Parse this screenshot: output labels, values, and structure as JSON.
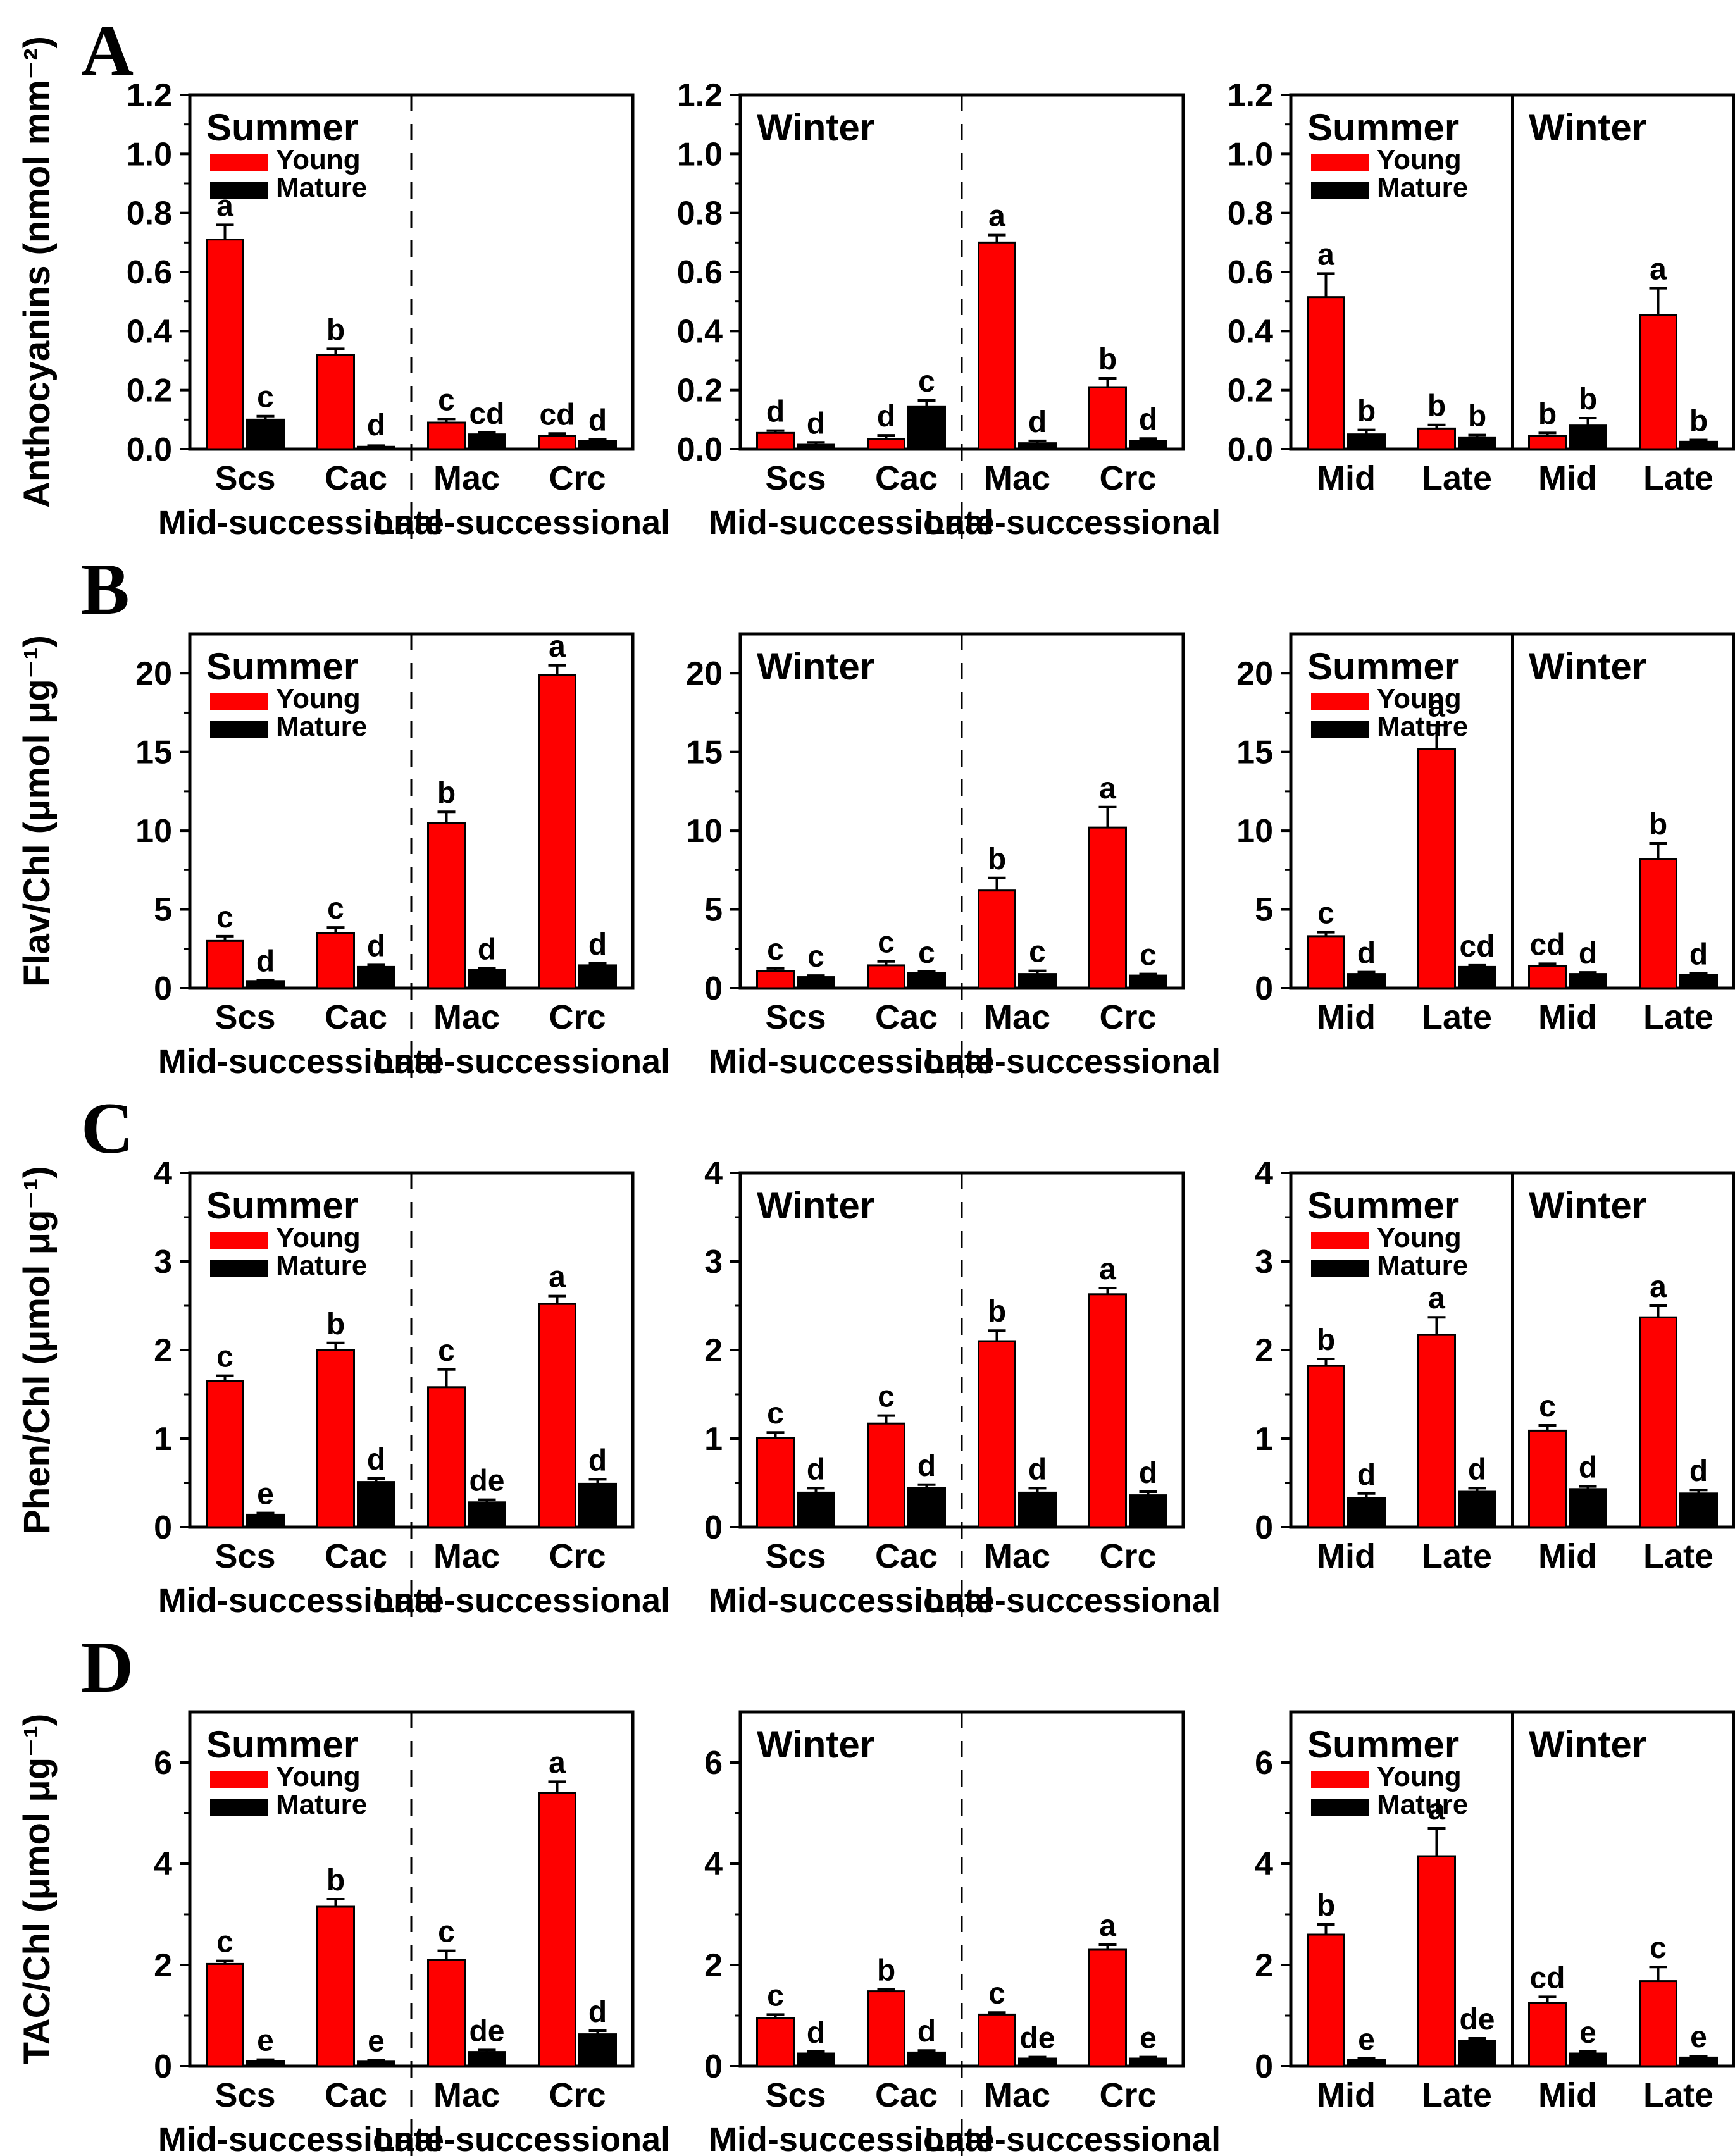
{
  "legend": {
    "young_label": "Young",
    "mature_label": "Mature",
    "young_color": "#fe0000",
    "mature_color": "#000000"
  },
  "chart_data": {
    "type": "bar",
    "series_names": [
      "Young",
      "Mature"
    ],
    "grid": false,
    "legend_position": "top-left-inside",
    "rows": [
      {
        "row_label": "A",
        "ylabel": "Anthocyanins (nmol mm⁻²)",
        "ylim": [
          0,
          1.2
        ],
        "yticks": [
          0,
          0.2,
          0.4,
          0.6,
          0.8,
          1.0,
          1.2
        ],
        "ytick_labels": [
          "0.0",
          "0.2",
          "0.4",
          "0.6",
          "0.8",
          "1.0",
          "1.2"
        ],
        "yminor": [
          0.1,
          0.3,
          0.5,
          0.7,
          0.9,
          1.1
        ],
        "panels": [
          {
            "headers": [
              "Summer"
            ],
            "legend": true,
            "divider": "dashed",
            "categories": [
              "Scs",
              "Cac",
              "Mac",
              "Crc"
            ],
            "group_labels": [
              "Mid-successional",
              "Late-successional"
            ],
            "young": {
              "values": [
                0.71,
                0.32,
                0.09,
                0.045
              ],
              "errors": [
                0.05,
                0.02,
                0.012,
                0.008
              ],
              "letters": [
                "a",
                "b",
                "c",
                "cd"
              ]
            },
            "mature": {
              "values": [
                0.1,
                0.008,
                0.05,
                0.028
              ],
              "errors": [
                0.012,
                0.004,
                0.006,
                0.005
              ],
              "letters": [
                "c",
                "d",
                "cd",
                "d"
              ]
            }
          },
          {
            "headers": [
              "Winter"
            ],
            "legend": false,
            "divider": "dashed",
            "categories": [
              "Scs",
              "Cac",
              "Mac",
              "Crc"
            ],
            "group_labels": [
              "Mid-successional",
              "Late-successional"
            ],
            "young": {
              "values": [
                0.055,
                0.035,
                0.7,
                0.21
              ],
              "errors": [
                0.008,
                0.012,
                0.025,
                0.03
              ],
              "letters": [
                "d",
                "d",
                "a",
                "b"
              ]
            },
            "mature": {
              "values": [
                0.015,
                0.145,
                0.02,
                0.028
              ],
              "errors": [
                0.008,
                0.02,
                0.008,
                0.008
              ],
              "letters": [
                "d",
                "c",
                "d",
                "d"
              ]
            }
          },
          {
            "headers": [
              "Summer",
              "Winter"
            ],
            "legend": true,
            "divider": "solid",
            "categories": [
              "Mid",
              "Late",
              "Mid",
              "Late"
            ],
            "group_labels": null,
            "young": {
              "values": [
                0.515,
                0.07,
                0.045,
                0.455
              ],
              "errors": [
                0.08,
                0.012,
                0.01,
                0.09
              ],
              "letters": [
                "a",
                "b",
                "b",
                "a"
              ]
            },
            "mature": {
              "values": [
                0.05,
                0.04,
                0.08,
                0.025
              ],
              "errors": [
                0.015,
                0.008,
                0.025,
                0.006
              ],
              "letters": [
                "b",
                "b",
                "b",
                "b"
              ]
            }
          }
        ]
      },
      {
        "row_label": "B",
        "ylabel": "Flav/Chl (μmol μg⁻¹)",
        "ylim": [
          0,
          22.5
        ],
        "yticks": [
          0,
          5,
          10,
          15,
          20
        ],
        "ytick_labels": [
          "0",
          "5",
          "10",
          "15",
          "20"
        ],
        "yminor": [
          2.5,
          7.5,
          12.5,
          17.5
        ],
        "panels": [
          {
            "headers": [
              "Summer"
            ],
            "legend": true,
            "divider": "dashed",
            "categories": [
              "Scs",
              "Cac",
              "Mac",
              "Crc"
            ],
            "group_labels": [
              "Mid-successional",
              "Late-successional"
            ],
            "young": {
              "values": [
                3.0,
                3.5,
                10.5,
                19.9
              ],
              "errors": [
                0.3,
                0.35,
                0.7,
                0.6
              ],
              "letters": [
                "c",
                "c",
                "b",
                "a"
              ]
            },
            "mature": {
              "values": [
                0.45,
                1.35,
                1.15,
                1.45
              ],
              "errors": [
                0.05,
                0.12,
                0.12,
                0.12
              ],
              "letters": [
                "d",
                "d",
                "d",
                "d"
              ]
            }
          },
          {
            "headers": [
              "Winter"
            ],
            "legend": false,
            "divider": "dashed",
            "categories": [
              "Scs",
              "Cac",
              "Mac",
              "Crc"
            ],
            "group_labels": [
              "Mid-successional",
              "Late-successional"
            ],
            "young": {
              "values": [
                1.1,
                1.45,
                6.2,
                10.2
              ],
              "errors": [
                0.15,
                0.25,
                0.8,
                1.3
              ],
              "letters": [
                "c",
                "c",
                "b",
                "a"
              ]
            },
            "mature": {
              "values": [
                0.7,
                0.95,
                0.9,
                0.8
              ],
              "errors": [
                0.1,
                0.1,
                0.2,
                0.1
              ],
              "letters": [
                "c",
                "c",
                "c",
                "c"
              ]
            }
          },
          {
            "headers": [
              "Summer",
              "Winter"
            ],
            "legend": true,
            "divider": "solid",
            "categories": [
              "Mid",
              "Late",
              "Mid",
              "Late"
            ],
            "group_labels": null,
            "young": {
              "values": [
                3.3,
                15.2,
                1.4,
                8.2
              ],
              "errors": [
                0.25,
                1.5,
                0.15,
                1.0
              ],
              "letters": [
                "c",
                "a",
                "cd",
                "b"
              ]
            },
            "mature": {
              "values": [
                0.9,
                1.35,
                0.9,
                0.85
              ],
              "errors": [
                0.12,
                0.1,
                0.1,
                0.1
              ],
              "letters": [
                "d",
                "cd",
                "d",
                "d"
              ]
            }
          }
        ]
      },
      {
        "row_label": "C",
        "ylabel": "Phen/Chl (μmol μg⁻¹)",
        "ylim": [
          0,
          4
        ],
        "yticks": [
          0,
          1,
          2,
          3,
          4
        ],
        "ytick_labels": [
          "0",
          "1",
          "2",
          "3",
          "4"
        ],
        "yminor": [
          0.5,
          1.5,
          2.5,
          3.5
        ],
        "panels": [
          {
            "headers": [
              "Summer"
            ],
            "legend": true,
            "divider": "dashed",
            "categories": [
              "Scs",
              "Cac",
              "Mac",
              "Crc"
            ],
            "group_labels": [
              "Mid-successional",
              "Late-successional"
            ],
            "young": {
              "values": [
                1.65,
                2.0,
                1.58,
                2.52
              ],
              "errors": [
                0.06,
                0.08,
                0.2,
                0.09
              ],
              "letters": [
                "c",
                "b",
                "c",
                "a"
              ]
            },
            "mature": {
              "values": [
                0.14,
                0.51,
                0.28,
                0.49
              ],
              "errors": [
                0.02,
                0.04,
                0.03,
                0.05
              ],
              "letters": [
                "e",
                "d",
                "de",
                "d"
              ]
            }
          },
          {
            "headers": [
              "Winter"
            ],
            "legend": false,
            "divider": "dashed",
            "categories": [
              "Scs",
              "Cac",
              "Mac",
              "Crc"
            ],
            "group_labels": [
              "Mid-successional",
              "Late-successional"
            ],
            "young": {
              "values": [
                1.01,
                1.17,
                2.1,
                2.63
              ],
              "errors": [
                0.06,
                0.09,
                0.12,
                0.07
              ],
              "letters": [
                "c",
                "c",
                "b",
                "a"
              ]
            },
            "mature": {
              "values": [
                0.39,
                0.44,
                0.39,
                0.36
              ],
              "errors": [
                0.05,
                0.04,
                0.05,
                0.04
              ],
              "letters": [
                "d",
                "d",
                "d",
                "d"
              ]
            }
          },
          {
            "headers": [
              "Summer",
              "Winter"
            ],
            "legend": true,
            "divider": "solid",
            "categories": [
              "Mid",
              "Late",
              "Mid",
              "Late"
            ],
            "group_labels": null,
            "young": {
              "values": [
                1.82,
                2.17,
                1.09,
                2.37
              ],
              "errors": [
                0.08,
                0.2,
                0.06,
                0.13
              ],
              "letters": [
                "b",
                "a",
                "c",
                "a"
              ]
            },
            "mature": {
              "values": [
                0.33,
                0.4,
                0.43,
                0.38
              ],
              "errors": [
                0.05,
                0.04,
                0.03,
                0.04
              ],
              "letters": [
                "d",
                "d",
                "d",
                "d"
              ]
            }
          }
        ]
      },
      {
        "row_label": "D",
        "ylabel": "TAC/Chl (μmol μg⁻¹)",
        "ylim": [
          0,
          7
        ],
        "yticks": [
          0,
          2,
          4,
          6
        ],
        "ytick_labels": [
          "0",
          "2",
          "4",
          "6"
        ],
        "yminor": [
          1,
          3,
          5
        ],
        "panels": [
          {
            "headers": [
              "Summer"
            ],
            "legend": true,
            "divider": "dashed",
            "categories": [
              "Scs",
              "Cac",
              "Mac",
              "Crc"
            ],
            "group_labels": [
              "Mid-successional",
              "Late-successional"
            ],
            "young": {
              "values": [
                2.02,
                3.15,
                2.1,
                5.4
              ],
              "errors": [
                0.06,
                0.15,
                0.18,
                0.22
              ],
              "letters": [
                "c",
                "b",
                "c",
                "a"
              ]
            },
            "mature": {
              "values": [
                0.1,
                0.09,
                0.28,
                0.63
              ],
              "errors": [
                0.03,
                0.03,
                0.04,
                0.07
              ],
              "letters": [
                "e",
                "e",
                "de",
                "d"
              ]
            }
          },
          {
            "headers": [
              "Winter"
            ],
            "legend": false,
            "divider": "dashed",
            "categories": [
              "Scs",
              "Cac",
              "Mac",
              "Crc"
            ],
            "group_labels": [
              "Mid-successional",
              "Late-successional"
            ],
            "young": {
              "values": [
                0.95,
                1.48,
                1.02,
                2.3
              ],
              "errors": [
                0.07,
                0.04,
                0.04,
                0.1
              ],
              "letters": [
                "c",
                "b",
                "c",
                "a"
              ]
            },
            "mature": {
              "values": [
                0.25,
                0.27,
                0.15,
                0.15
              ],
              "errors": [
                0.04,
                0.04,
                0.03,
                0.03
              ],
              "letters": [
                "d",
                "d",
                "de",
                "e"
              ]
            }
          },
          {
            "headers": [
              "Summer",
              "Winter"
            ],
            "legend": true,
            "divider": "solid",
            "categories": [
              "Mid",
              "Late",
              "Mid",
              "Late"
            ],
            "group_labels": null,
            "young": {
              "values": [
                2.6,
                4.15,
                1.25,
                1.68
              ],
              "errors": [
                0.2,
                0.55,
                0.12,
                0.28
              ],
              "letters": [
                "b",
                "a",
                "cd",
                "c"
              ]
            },
            "mature": {
              "values": [
                0.12,
                0.5,
                0.25,
                0.17
              ],
              "errors": [
                0.03,
                0.05,
                0.04,
                0.03
              ],
              "letters": [
                "e",
                "de",
                "e",
                "e"
              ]
            }
          }
        ]
      }
    ]
  }
}
